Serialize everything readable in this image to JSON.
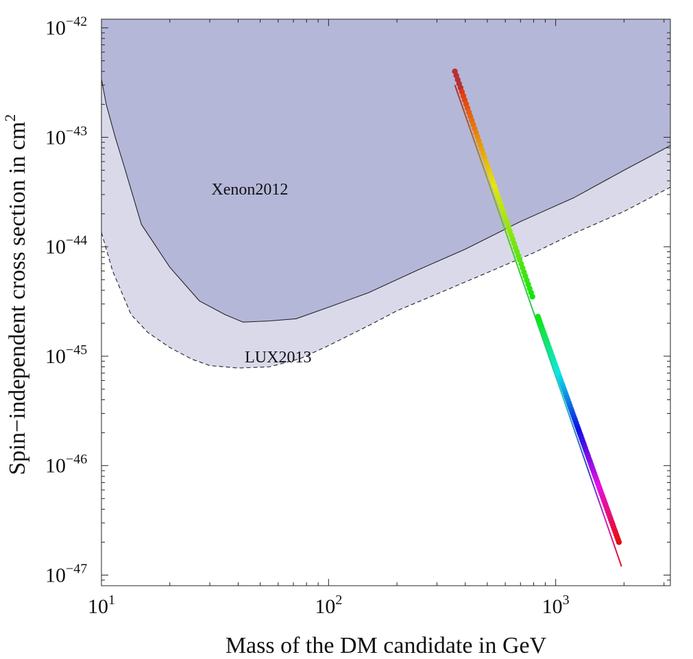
{
  "chart_data": {
    "type": "scatter",
    "title": "",
    "xlabel": "Mass of the DM candidate in GeV",
    "ylabel_main": "Spin−independent cross section in cm",
    "ylabel_sup": "2",
    "x_scale": "log",
    "y_scale": "log",
    "xlim": [
      10,
      3200
    ],
    "ylim": [
      8e-48,
      1.2e-42
    ],
    "x_ticks": [
      {
        "value": 10,
        "base": "10",
        "exp": "1"
      },
      {
        "value": 100,
        "base": "10",
        "exp": "2"
      },
      {
        "value": 1000,
        "base": "10",
        "exp": "3"
      }
    ],
    "y_ticks": [
      {
        "value": 1e-42,
        "base": "10",
        "exp": "−42"
      },
      {
        "value": 1e-43,
        "base": "10",
        "exp": "−43"
      },
      {
        "value": 1e-44,
        "base": "10",
        "exp": "−44"
      },
      {
        "value": 1e-45,
        "base": "10",
        "exp": "−45"
      },
      {
        "value": 1e-46,
        "base": "10",
        "exp": "−46"
      },
      {
        "value": 1e-47,
        "base": "10",
        "exp": "−47"
      }
    ],
    "regions": [
      {
        "name": "LUX2013",
        "label": "LUX2013",
        "fill": "#d9d9ea",
        "line_style": "dashed",
        "label_at": [
          60,
          8.8e-46
        ],
        "x": [
          10,
          11.2,
          13.5,
          16,
          20,
          25,
          30,
          40,
          55,
          75,
          100,
          150,
          200,
          300,
          500,
          800,
          1200,
          2000,
          3200
        ],
        "y": [
          1.35e-44,
          6e-45,
          2.4e-45,
          1.65e-45,
          1.2e-45,
          9.4e-46,
          8.2e-46,
          7.8e-46,
          8e-46,
          9.5e-46,
          1.25e-45,
          1.9e-45,
          2.6e-45,
          3.7e-45,
          5.8e-45,
          8.8e-45,
          1.32e-44,
          2.1e-44,
          3.5e-44
        ]
      },
      {
        "name": "Xenon2012",
        "label": "Xenon2012",
        "fill": "#b5b7d8",
        "line_style": "solid",
        "label_at": [
          45,
          3e-44
        ],
        "x": [
          10,
          10.5,
          11.5,
          12.5,
          15,
          20,
          27,
          35,
          42,
          55,
          72,
          100,
          150,
          250,
          400,
          700,
          1200,
          2000,
          3200
        ],
        "y": [
          3.4e-43,
          2e-43,
          1e-43,
          5.7e-44,
          1.6e-44,
          6.5e-45,
          3.2e-45,
          2.4e-45,
          2.05e-45,
          2.1e-45,
          2.2e-45,
          2.8e-45,
          3.8e-45,
          6.2e-45,
          9.5e-45,
          1.7e-44,
          2.8e-44,
          5e-44,
          8.4e-44
        ]
      }
    ],
    "series": [
      {
        "name": "model line",
        "style": "line",
        "x": [
          360,
          1950
        ],
        "y": [
          3e-43,
          1.2e-47
        ]
      },
      {
        "name": "upper branch",
        "style": "points",
        "x_start": 360,
        "y_start": 4e-43,
        "x_end": 790,
        "y_end": 3.5e-45,
        "count": 56,
        "hue_start": 0.0,
        "hue_end": 0.33
      },
      {
        "name": "lower branch",
        "style": "points",
        "x_start": 835,
        "y_start": 2.3e-45,
        "x_end": 1900,
        "y_end": 2e-47,
        "count": 90,
        "hue_start": 0.33,
        "hue_end": 1.0
      }
    ],
    "legend": "none",
    "grid": false
  }
}
